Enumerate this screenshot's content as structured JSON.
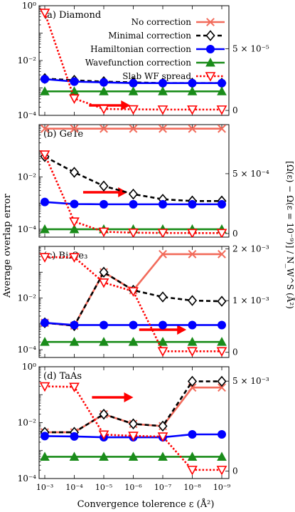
{
  "figure": {
    "ylabel_left": "Average overlap error",
    "ylabel_right": "[Ω(ε) − Ω(ε = 10⁻⁹)] / N_W^S (Å²)",
    "xlabel": "Convergence tolerence ε (Å²)",
    "x_ticks": [
      "10⁻³",
      "10⁻⁴",
      "10⁻⁵",
      "10⁻⁶",
      "10⁻⁷",
      "10⁻⁸",
      "10⁻⁹"
    ]
  },
  "series_style": [
    {
      "name": "No correction",
      "color": "#f26b5b",
      "marker": "x",
      "dash": "solid"
    },
    {
      "name": "Minimal correction",
      "color": "#000000",
      "marker": "diamond",
      "dash": "dashed"
    },
    {
      "name": "Hamiltonian correction",
      "color": "#0000ff",
      "marker": "circle",
      "dash": "solid"
    },
    {
      "name": "Wavefunction correction",
      "color": "#1a8c1a",
      "marker": "triangle-up",
      "dash": "solid"
    },
    {
      "name": "Slab WF spread",
      "color": "#ff0000",
      "marker": "triangle-down",
      "dash": "dotted"
    }
  ],
  "chart_data": [
    {
      "type": "line",
      "title": "(a) Diamond",
      "x": [
        -3,
        -4,
        -5,
        -6,
        -7,
        -8,
        -9
      ],
      "y_log": true,
      "ylim": [
        0.0001,
        1
      ],
      "yticks_left": [
        "10⁻⁴",
        "10⁻²",
        "10⁰"
      ],
      "right_axis": {
        "ylim": [
          -4e-06,
          8.5e-05
        ],
        "ticks": [
          {
            "v": 0,
            "label": "0"
          },
          {
            "v": 5e-05,
            "label": "5 × 10⁻⁵"
          }
        ]
      },
      "series": [
        {
          "name": "Minimal correction",
          "values": [
            0.0022,
            0.0019,
            0.0017,
            0.0016,
            0.0015,
            0.0015,
            0.0015
          ]
        },
        {
          "name": "Hamiltonian correction",
          "values": [
            0.0021,
            0.0017,
            0.0016,
            0.0015,
            0.0015,
            0.0015,
            0.0015
          ]
        },
        {
          "name": "Wavefunction correction",
          "values": [
            0.00075,
            0.00075,
            0.00075,
            0.00075,
            0.00075,
            0.00075,
            0.00075
          ]
        },
        {
          "name": "Slab WF spread",
          "axis": "right",
          "values": [
            7.92e-05,
            9.7e-06,
            1.2e-06,
            9e-07,
            7e-07,
            7e-07,
            7e-07
          ]
        }
      ],
      "legend": "top-right",
      "arrow_x": [
        -4.5,
        -5.9
      ]
    },
    {
      "type": "line",
      "title": "(b) GeTe",
      "x": [
        -3,
        -4,
        -5,
        -6,
        -7,
        -8,
        -9
      ],
      "y_log": true,
      "ylim": [
        5e-05,
        1
      ],
      "yticks_left": [
        "10⁻⁴",
        "10⁻²"
      ],
      "right_axis": {
        "ylim": [
          -3e-05,
          0.00091
        ],
        "ticks": [
          {
            "v": 0,
            "label": "0"
          },
          {
            "v": 0.0005,
            "label": "5 × 10⁻⁴"
          }
        ]
      },
      "series": [
        {
          "name": "No correction",
          "values": [
            0.7,
            0.7,
            0.7,
            0.7,
            0.7,
            0.7,
            0.7
          ]
        },
        {
          "name": "Minimal correction",
          "values": [
            0.06,
            0.015,
            0.0045,
            0.0022,
            0.0014,
            0.0012,
            0.0012
          ]
        },
        {
          "name": "Hamiltonian correction",
          "values": [
            0.0011,
            0.00092,
            0.0009,
            0.0009,
            0.0009,
            0.0009,
            0.0009
          ]
        },
        {
          "name": "Wavefunction correction",
          "values": [
            0.0001,
            0.0001,
            0.0001,
            0.0001,
            0.0001,
            0.0001,
            0.0001
          ]
        },
        {
          "name": "Slab WF spread",
          "axis": "right",
          "values": [
            0.00066,
            0.0001,
            1.5e-05,
            7e-06,
            5e-06,
            4e-06,
            4e-06
          ]
        }
      ],
      "arrow_x": [
        -4.3,
        -5.8
      ]
    },
    {
      "type": "line",
      "title": "(c) Bi₂Se₃",
      "x": [
        -3,
        -4,
        -5,
        -6,
        -7,
        -8,
        -9
      ],
      "y_log": true,
      "ylim": [
        5e-05,
        1
      ],
      "yticks_left": [
        "10⁻⁴",
        "10⁻²"
      ],
      "right_axis": {
        "ylim": [
          -0.0001,
          0.00205
        ],
        "ticks": [
          {
            "v": 0,
            "label": "0"
          },
          {
            "v": 0.001,
            "label": "1 × 10⁻³"
          },
          {
            "v": 0.002,
            "label": "2 × 10⁻³"
          }
        ]
      },
      "series": [
        {
          "name": "No correction",
          "values": [
            0.0011,
            0.00085,
            0.1,
            0.02,
            0.5,
            0.5,
            0.5
          ]
        },
        {
          "name": "Minimal correction",
          "values": [
            0.0011,
            0.00085,
            0.1,
            0.02,
            0.011,
            0.008,
            0.0075
          ]
        },
        {
          "name": "Hamiltonian correction",
          "values": [
            0.0011,
            0.0009,
            0.0009,
            0.0009,
            0.0009,
            0.0009,
            0.0009
          ]
        },
        {
          "name": "Wavefunction correction",
          "values": [
            0.0002,
            0.0002,
            0.0002,
            0.0002,
            0.0002,
            0.0002,
            0.0002
          ]
        },
        {
          "name": "Slab WF spread",
          "axis": "right",
          "values": [
            0.00184,
            0.00184,
            0.00135,
            0.00118,
            2e-05,
            2e-05,
            2e-05
          ]
        }
      ],
      "arrow_x": [
        -6.2,
        -7.8
      ]
    },
    {
      "type": "line",
      "title": "(d) TaAs",
      "x": [
        -3,
        -4,
        -5,
        -6,
        -7,
        -8,
        -9
      ],
      "y_log": true,
      "ylim": [
        0.0001,
        1
      ],
      "yticks_left": [
        "10⁻⁴",
        "10⁻²",
        "10⁰"
      ],
      "right_axis": {
        "ylim": [
          -0.00041,
          0.0058
        ],
        "ticks": [
          {
            "v": 0,
            "label": "0"
          },
          {
            "v": 0.005,
            "label": "5 × 10⁻³"
          }
        ]
      },
      "series": [
        {
          "name": "No correction",
          "values": [
            0.0045,
            0.0045,
            0.02,
            0.009,
            0.0075,
            0.18,
            0.18
          ]
        },
        {
          "name": "Minimal correction",
          "values": [
            0.0045,
            0.0045,
            0.02,
            0.009,
            0.0075,
            0.3,
            0.3
          ]
        },
        {
          "name": "Hamiltonian correction",
          "values": [
            0.0033,
            0.0032,
            0.003,
            0.003,
            0.003,
            0.0038,
            0.0038
          ]
        },
        {
          "name": "Wavefunction correction",
          "values": [
            0.0006,
            0.0006,
            0.0006,
            0.0006,
            0.0006,
            0.0006,
            0.0006
          ]
        },
        {
          "name": "Slab WF spread",
          "axis": "right",
          "values": [
            0.00471,
            0.00468,
            0.00203,
            0.00196,
            0.00192,
            7e-05,
            7e-05
          ]
        }
      ],
      "arrow_x": [
        -4.6,
        -6.0
      ]
    }
  ]
}
